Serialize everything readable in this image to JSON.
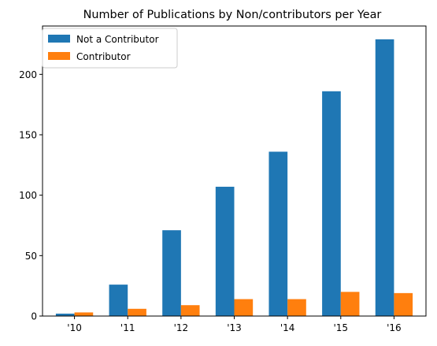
{
  "chart_data": {
    "type": "bar",
    "title": "Number of Publications by Non/contributors per Year",
    "xlabel": "",
    "ylabel": "",
    "categories": [
      "'10",
      "'11",
      "'12",
      "'13",
      "'14",
      "'15",
      "'16"
    ],
    "series": [
      {
        "name": "Not a Contributor",
        "color": "#1f77b4",
        "values": [
          2,
          26,
          71,
          107,
          136,
          186,
          229
        ]
      },
      {
        "name": "Contributor",
        "color": "#ff7f0e",
        "values": [
          3,
          6,
          9,
          14,
          14,
          20,
          19
        ]
      }
    ],
    "ylim": [
      0,
      240
    ],
    "yticks": [
      0,
      50,
      100,
      150,
      200
    ],
    "grid": false,
    "legend_position": "upper-left"
  }
}
